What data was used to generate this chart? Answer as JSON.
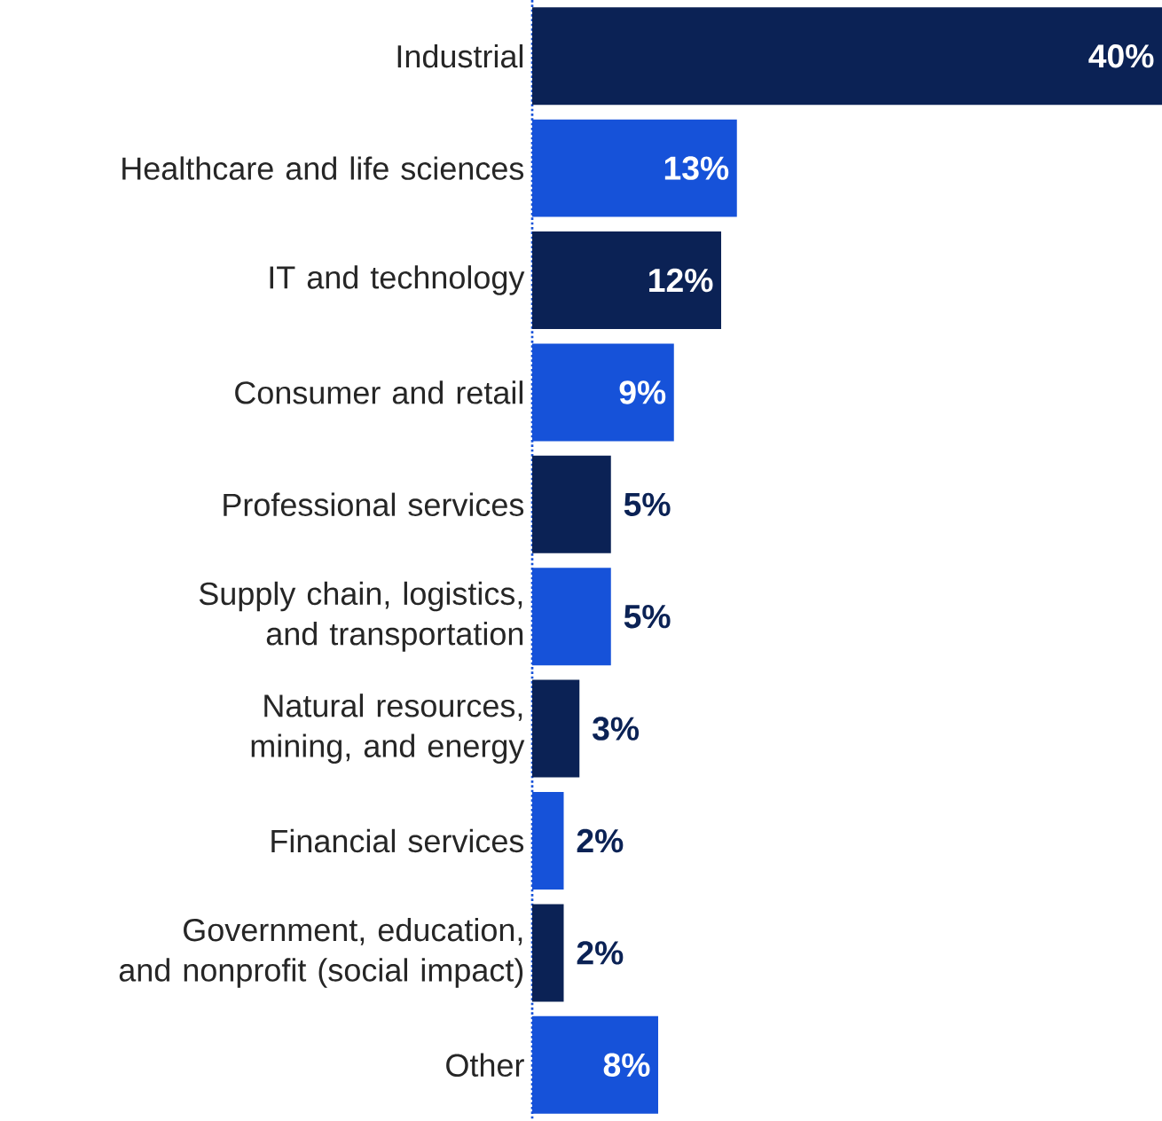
{
  "chart_data": {
    "type": "bar",
    "orientation": "horizontal",
    "categories": [
      "Industrial",
      "Healthcare and life sciences",
      "IT and technology",
      "Consumer and retail",
      "Professional services",
      "Supply chain, logistics, and transportation",
      "Natural resources, mining, and energy",
      "Financial services",
      "Government, education, and nonprofit (social impact)",
      "Other"
    ],
    "values": [
      40,
      13,
      12,
      9,
      5,
      5,
      3,
      2,
      2,
      8
    ],
    "value_labels": [
      "40%",
      "13%",
      "12%",
      "9%",
      "5%",
      "5%",
      "3%",
      "2%",
      "2%",
      "8%"
    ],
    "colors": [
      "#0b2255",
      "#1652d9",
      "#0b2255",
      "#1652d9",
      "#0b2255",
      "#1652d9",
      "#0b2255",
      "#1652d9",
      "#0b2255",
      "#1652d9"
    ]
  }
}
